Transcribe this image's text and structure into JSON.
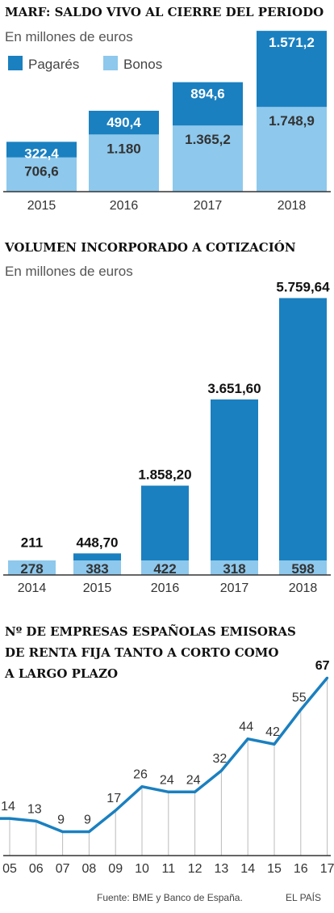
{
  "colors": {
    "dark_blue": "#1a80c0",
    "light_blue": "#8ec8ec",
    "axis": "#333333",
    "grid": "#bbbbbb",
    "line": "#1a80c0"
  },
  "footer": {
    "source": "Fuente: BME y Banco de España.",
    "brand": "EL PAÍS"
  },
  "chart_data": [
    {
      "type": "bar",
      "stacked": true,
      "title": "MARF: SALDO VIVO AL CIERRE DEL PERIODO",
      "subtitle": "En millones de euros",
      "legend": [
        "Pagarés",
        "Bonos"
      ],
      "legend_placement": "top-left",
      "categories": [
        "2015",
        "2016",
        "2017",
        "2018"
      ],
      "series": [
        {
          "name": "Bonos",
          "values": [
            706.6,
            1180,
            1365.2,
            1748.9
          ],
          "labels": [
            "706,6",
            "1.180",
            "1.365,2",
            "1.748,9"
          ]
        },
        {
          "name": "Pagarés",
          "values": [
            322.4,
            490.4,
            894.6,
            1571.2
          ],
          "labels": [
            "322,4",
            "490,4",
            "894,6",
            "1.571,2"
          ]
        }
      ],
      "ylim": [
        0,
        3400
      ]
    },
    {
      "type": "bar",
      "stacked": true,
      "title": "VOLUMEN INCORPORADO A COTIZACIÓN",
      "subtitle": "En millones de euros",
      "categories": [
        "2014",
        "2015",
        "2016",
        "2017",
        "2018"
      ],
      "totals": [
        211,
        448.7,
        1858.2,
        3651.6,
        5759.64
      ],
      "total_labels": [
        "211",
        "448,70",
        "1.858,20",
        "3.651,60",
        "5.759,64"
      ],
      "light_segment_labels": [
        "278",
        "383",
        "422",
        "318",
        "598"
      ],
      "ylim": [
        0,
        6000
      ]
    },
    {
      "type": "line",
      "title_lines": [
        "Nº DE EMPRESAS ESPAÑOLAS EMISORAS",
        "DE RENTA FIJA TANTO A CORTO COMO",
        "A LARGO PLAZO"
      ],
      "x": [
        "05",
        "06",
        "07",
        "08",
        "09",
        "10",
        "11",
        "12",
        "13",
        "14",
        "15",
        "16",
        "17"
      ],
      "values": [
        14,
        13,
        9,
        9,
        17,
        26,
        24,
        24,
        32,
        44,
        42,
        55,
        67
      ],
      "ylim": [
        0,
        70
      ],
      "grid": true
    }
  ]
}
